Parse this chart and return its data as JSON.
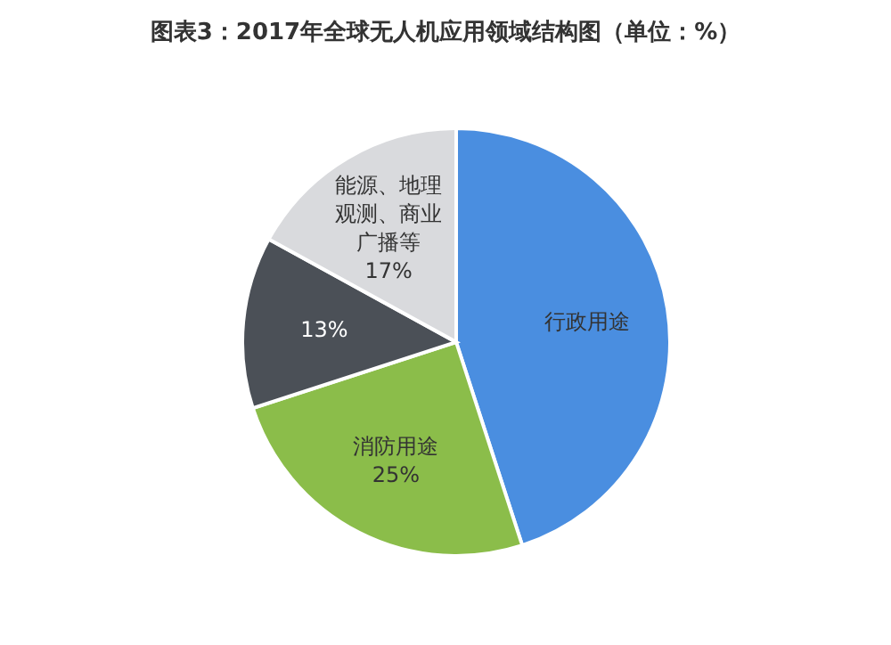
{
  "chart_data": {
    "type": "pie",
    "title": "图表3：2017年全球无人机应用领域结构图（单位：%）",
    "categories": [
      "行政用途",
      "消防用途",
      null,
      "能源、地理观测、商业广播等"
    ],
    "values": [
      45,
      25,
      13,
      17
    ],
    "colors": [
      "#4a8ee0",
      "#8bbd4a",
      "#4b5057",
      "#d9dadd"
    ],
    "value_labels": [
      null,
      "25%",
      "13%",
      "17%"
    ]
  }
}
